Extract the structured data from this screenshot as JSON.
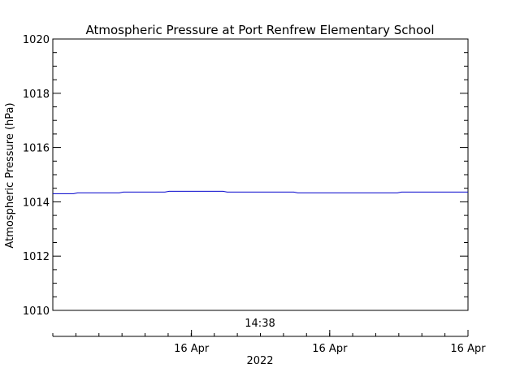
{
  "chart_data": {
    "type": "line",
    "title": "Atmospheric Pressure at Port Renfrew Elementary School",
    "ylabel": "Atmospheric Pressure (hPa)",
    "xlabel": "2022",
    "time_label": "14:38",
    "ylim": [
      1010,
      1020
    ],
    "y_ticks": [
      "1010",
      "1012",
      "1014",
      "1016",
      "1018",
      "1020"
    ],
    "x_tick_labels": [
      "16 Apr",
      "16 Apr",
      "16 Apr"
    ],
    "grid": false,
    "series": [
      {
        "color": "#0000cc",
        "values": [
          [
            0.0,
            1014.3
          ],
          [
            0.05,
            1014.3
          ],
          [
            0.06,
            1014.33
          ],
          [
            0.16,
            1014.33
          ],
          [
            0.17,
            1014.36
          ],
          [
            0.27,
            1014.36
          ],
          [
            0.28,
            1014.39
          ],
          [
            0.41,
            1014.39
          ],
          [
            0.42,
            1014.36
          ],
          [
            0.58,
            1014.36
          ],
          [
            0.59,
            1014.33
          ],
          [
            0.83,
            1014.33
          ],
          [
            0.84,
            1014.36
          ],
          [
            1.0,
            1014.36
          ]
        ]
      }
    ]
  }
}
